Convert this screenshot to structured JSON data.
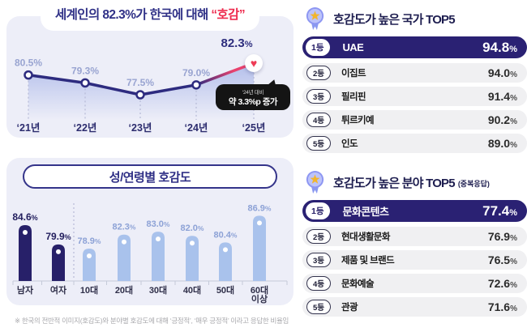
{
  "page": {
    "footnote": "※ 한국의 전반적 이미지(호감도)와 분야별 호감도에 대해 ‘긍정적’, ‘매우 긍정적’ 이라고 응답한 비율임"
  },
  "line_section": {
    "title_prefix": "세계인의 82.3%가 한국에 대해 ",
    "title_highlight": "“호감”",
    "highlight_value": "82.3",
    "unit": "%",
    "annotation_line1": "‘24년 대비",
    "annotation_line2": "약 3.3%p 증가",
    "heart_glyph": "♥"
  },
  "bar_section": {
    "title": "성/연령별 호감도"
  },
  "country_top5": {
    "title": "호감도가 높은 국가 TOP5",
    "rows": [
      {
        "rank": "1등",
        "name": "UAE",
        "value": "94.8",
        "unit": "%"
      },
      {
        "rank": "2등",
        "name": "이집트",
        "value": "94.0",
        "unit": "%"
      },
      {
        "rank": "3등",
        "name": "필리핀",
        "value": "91.4",
        "unit": "%"
      },
      {
        "rank": "4등",
        "name": "튀르키예",
        "value": "90.2",
        "unit": "%"
      },
      {
        "rank": "5등",
        "name": "인도",
        "value": "89.0",
        "unit": "%"
      }
    ]
  },
  "field_top5": {
    "title": "호감도가 높은 분야 TOP5",
    "subtitle": "(중복응답)",
    "rows": [
      {
        "rank": "1등",
        "name": "문화콘텐츠",
        "value": "77.4",
        "unit": "%"
      },
      {
        "rank": "2등",
        "name": "현대생활문화",
        "value": "76.9",
        "unit": "%"
      },
      {
        "rank": "3등",
        "name": "제품 및 브랜드",
        "value": "76.5",
        "unit": "%"
      },
      {
        "rank": "4등",
        "name": "문화예술",
        "value": "72.6",
        "unit": "%"
      },
      {
        "rank": "5등",
        "name": "관광",
        "value": "71.6",
        "unit": "%"
      }
    ]
  },
  "chart_data": [
    {
      "type": "line",
      "title": "세계인의 82.3%가 한국에 대해 “호감”",
      "categories": [
        "‘21년",
        "‘22년",
        "‘23년",
        "‘24년",
        "‘25년"
      ],
      "values": [
        80.5,
        79.3,
        77.5,
        79.0,
        82.3
      ],
      "unit": "%",
      "ylim": [
        76,
        84
      ],
      "annotation": "‘24년 대비 약 3.3%p 증가",
      "line_color": "#2d2b7f",
      "highlight_color": "#e8426e"
    },
    {
      "type": "bar",
      "title": "성/연령별 호감도",
      "categories": [
        "남자",
        "여자",
        "10대",
        "20대",
        "30대",
        "40대",
        "50대",
        "60대 이상"
      ],
      "values": [
        84.6,
        79.9,
        78.9,
        82.3,
        83.0,
        82.0,
        80.4,
        86.9
      ],
      "unit": "%",
      "ylim": [
        71,
        90
      ],
      "dark_indices": [
        0,
        1
      ],
      "bar_color_dark": "#272069",
      "bar_color_light": "#a9c2ec"
    }
  ],
  "colors": {
    "panel_bg": "#edeef8",
    "navy": "#2a2173",
    "periwinkle": "#a9c2ec",
    "pink": "#e8426e",
    "red": "#ee2b4e",
    "row_bg": "#f0f0f2",
    "gold": "#f2b52c"
  }
}
